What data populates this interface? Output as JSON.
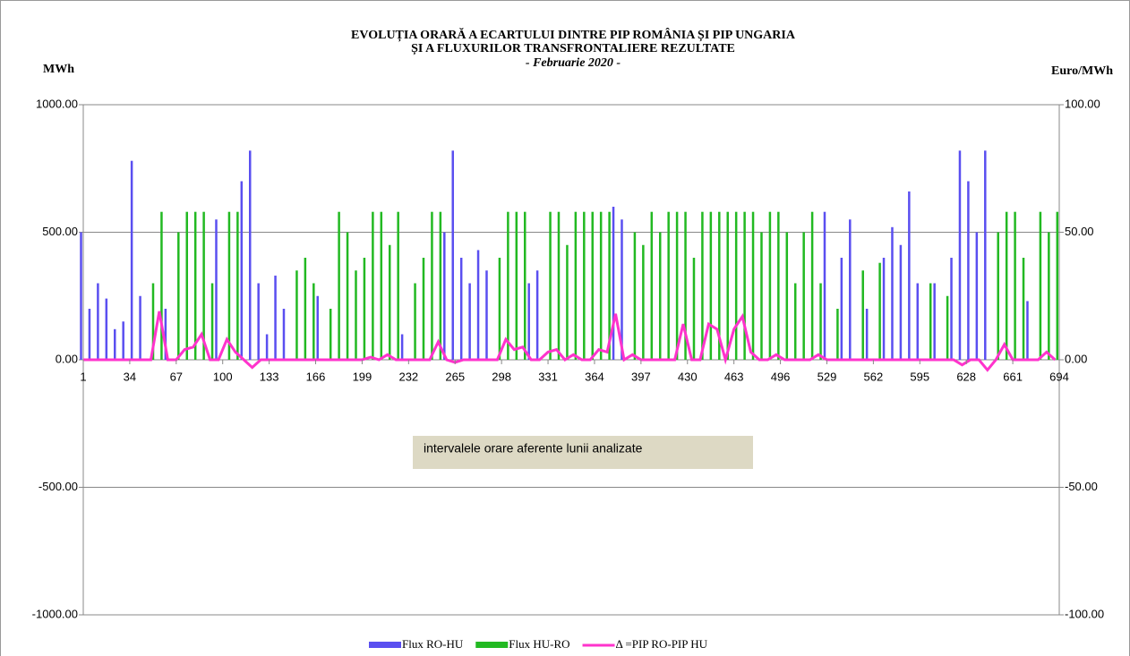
{
  "chart_data": {
    "type": "bar",
    "title": [
      "EVOLUȚIA ORARĂ A ECARTULUI DINTRE PIP ROMÂNIA ȘI PIP UNGARIA",
      "ȘI A FLUXURILOR TRANSFRONTALIERE REZULTATE"
    ],
    "subtitle": "- Februarie 2020 -",
    "y_label": "MWh",
    "y2_label": "Euro/MWh",
    "annotation": "intervalele orare aferente lunii analizate",
    "grid": true,
    "xlim": [
      1,
      694
    ],
    "xticks": [
      1,
      34,
      67,
      100,
      133,
      166,
      199,
      232,
      265,
      298,
      331,
      364,
      397,
      430,
      463,
      496,
      529,
      562,
      595,
      628,
      661,
      694
    ],
    "ylim": [
      -1000,
      1000
    ],
    "yticks": [
      {
        "value": -1000,
        "label": "-1000.00"
      },
      {
        "value": -500,
        "label": "-500.00"
      },
      {
        "value": 0,
        "label": "0.00"
      },
      {
        "value": 500,
        "label": "500.00"
      },
      {
        "value": 1000,
        "label": "1000.00"
      }
    ],
    "y2lim": [
      -100,
      100
    ],
    "y2ticks": [
      {
        "value": -100,
        "label": "-100.00"
      },
      {
        "value": -50,
        "label": "-50.00"
      },
      {
        "value": 0,
        "label": "0.00"
      },
      {
        "value": 50,
        "label": "50.00"
      },
      {
        "value": 100,
        "label": "100.00"
      }
    ],
    "x": [
      1,
      7,
      13,
      19,
      25,
      31,
      37,
      43,
      49,
      55,
      61,
      67,
      73,
      79,
      85,
      91,
      97,
      103,
      109,
      115,
      121,
      127,
      133,
      139,
      145,
      151,
      157,
      163,
      169,
      175,
      181,
      187,
      193,
      199,
      205,
      211,
      217,
      223,
      229,
      235,
      241,
      247,
      253,
      259,
      265,
      271,
      277,
      283,
      289,
      295,
      301,
      307,
      313,
      319,
      325,
      331,
      337,
      343,
      349,
      355,
      361,
      367,
      373,
      379,
      385,
      391,
      397,
      403,
      409,
      415,
      421,
      427,
      433,
      439,
      445,
      451,
      457,
      463,
      469,
      475,
      481,
      487,
      493,
      499,
      505,
      511,
      517,
      523,
      529,
      535,
      541,
      547,
      553,
      559,
      565,
      571,
      577,
      583,
      589,
      595,
      601,
      607,
      613,
      619,
      625,
      631,
      637,
      643,
      649,
      655,
      661,
      667,
      673,
      679,
      685,
      691
    ],
    "series": [
      {
        "name": "Flux RO-HU",
        "color": "#5a4ff0",
        "values": [
          500,
          200,
          300,
          240,
          120,
          150,
          780,
          250,
          0,
          0,
          200,
          0,
          0,
          0,
          0,
          0,
          550,
          0,
          0,
          700,
          820,
          300,
          100,
          330,
          200,
          0,
          0,
          0,
          250,
          0,
          0,
          0,
          0,
          0,
          0,
          0,
          0,
          0,
          100,
          0,
          0,
          0,
          0,
          500,
          820,
          400,
          300,
          430,
          350,
          0,
          0,
          0,
          0,
          300,
          350,
          0,
          0,
          0,
          0,
          0,
          0,
          0,
          0,
          600,
          550,
          0,
          0,
          0,
          0,
          0,
          0,
          0,
          0,
          0,
          0,
          0,
          0,
          0,
          0,
          0,
          0,
          0,
          0,
          0,
          0,
          0,
          0,
          0,
          580,
          0,
          400,
          550,
          0,
          200,
          0,
          400,
          520,
          450,
          660,
          300,
          0,
          300,
          0,
          400,
          820,
          700,
          500,
          820,
          0,
          0,
          0,
          0,
          230,
          0,
          0,
          0
        ]
      },
      {
        "name": "Flux HU-RO",
        "color": "#22b922",
        "values": [
          0,
          0,
          0,
          0,
          0,
          0,
          0,
          0,
          300,
          580,
          0,
          500,
          580,
          580,
          580,
          300,
          0,
          580,
          580,
          0,
          0,
          0,
          0,
          0,
          0,
          350,
          400,
          300,
          0,
          200,
          580,
          500,
          350,
          400,
          580,
          580,
          450,
          580,
          0,
          300,
          400,
          580,
          580,
          0,
          0,
          0,
          0,
          0,
          0,
          400,
          580,
          580,
          580,
          0,
          0,
          580,
          580,
          450,
          580,
          580,
          580,
          580,
          580,
          0,
          0,
          500,
          450,
          580,
          500,
          580,
          580,
          580,
          400,
          580,
          580,
          580,
          580,
          580,
          580,
          580,
          500,
          580,
          580,
          500,
          300,
          500,
          580,
          300,
          0,
          200,
          0,
          0,
          350,
          0,
          380,
          0,
          0,
          0,
          0,
          0,
          300,
          0,
          250,
          0,
          0,
          0,
          0,
          0,
          500,
          580,
          580,
          400,
          0,
          580,
          500,
          580
        ]
      },
      {
        "name": "Δ =PIP RO-PIP HU",
        "color": "#ff33cc",
        "axis": "y2",
        "values": [
          0,
          0,
          0,
          0,
          0,
          0,
          0,
          0,
          0,
          19,
          0,
          0,
          4,
          5,
          10,
          0,
          0,
          8,
          3,
          0,
          -3,
          0,
          0,
          0,
          0,
          0,
          0,
          0,
          0,
          0,
          0,
          0,
          0,
          0,
          1,
          0,
          2,
          0,
          0,
          0,
          0,
          0,
          7,
          0,
          -1,
          0,
          0,
          0,
          0,
          0,
          8,
          4,
          5,
          0,
          0,
          3,
          4,
          0,
          2,
          0,
          0,
          4,
          3,
          18,
          0,
          2,
          0,
          0,
          0,
          0,
          0,
          14,
          0,
          0,
          14,
          12,
          0,
          12,
          17,
          3,
          0,
          0,
          2,
          0,
          0,
          0,
          0,
          2,
          0,
          0,
          0,
          0,
          0,
          0,
          0,
          0,
          0,
          0,
          0,
          0,
          0,
          0,
          0,
          0,
          -2,
          0,
          0,
          -4,
          0,
          6,
          0,
          0,
          0,
          0,
          3,
          0
        ]
      }
    ]
  }
}
